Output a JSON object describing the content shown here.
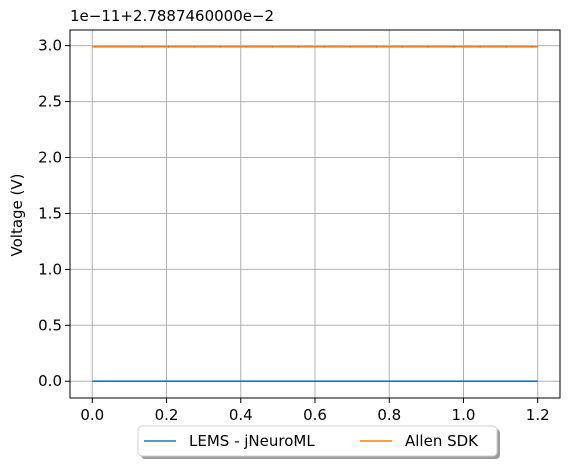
{
  "chart_data": {
    "type": "line",
    "offset_label": "1e−11+2.7887460000e−2",
    "ylabel": "Voltage (V)",
    "xlabel": "",
    "xlim": [
      -0.06,
      1.26
    ],
    "ylim": [
      -0.15,
      3.14
    ],
    "x_ticks": [
      0.0,
      0.2,
      0.4,
      0.6,
      0.8,
      1.0,
      1.2
    ],
    "x_tick_labels": [
      "0.0",
      "0.2",
      "0.4",
      "0.6",
      "0.8",
      "1.0",
      "1.2"
    ],
    "y_ticks": [
      0.0,
      0.5,
      1.0,
      1.5,
      2.0,
      2.5,
      3.0
    ],
    "y_tick_labels": [
      "0.0",
      "0.5",
      "1.0",
      "1.5",
      "2.0",
      "2.5",
      "3.0"
    ],
    "grid": true,
    "legend_position": "bottom-center, below axes",
    "series": [
      {
        "name": "LEMS - jNeuroML",
        "color": "#1f77b4",
        "x": [
          0.0,
          1.2
        ],
        "y": [
          0.0,
          0.0
        ]
      },
      {
        "name": "Allen SDK",
        "color": "#ff7f0e",
        "x": [
          0.0,
          1.2
        ],
        "y": [
          2.99,
          2.99
        ]
      }
    ]
  }
}
